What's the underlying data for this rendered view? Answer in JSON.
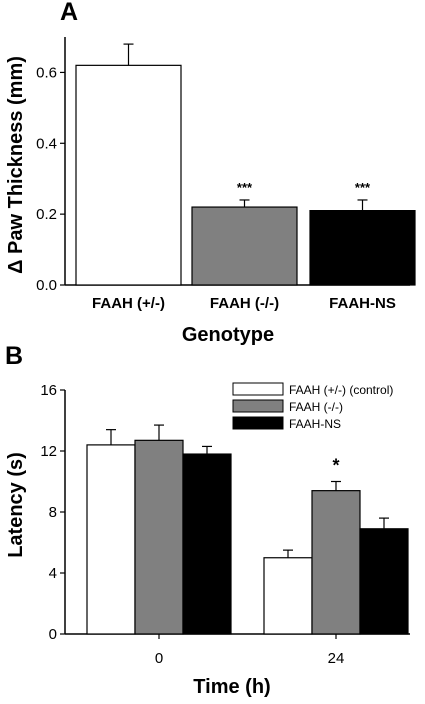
{
  "chart_data": [
    {
      "type": "bar",
      "panel_label": "A",
      "categories": [
        "FAAH (+/-)",
        "FAAH (-/-)",
        "FAAH-NS"
      ],
      "values": [
        0.62,
        0.22,
        0.21
      ],
      "errors": [
        0.06,
        0.02,
        0.03
      ],
      "colors": [
        "#ffffff",
        "#808080",
        "#000000"
      ],
      "significance": [
        "",
        "***",
        "***"
      ],
      "xlabel": "Genotype",
      "ylabel": "Δ Paw Thickness (mm)",
      "ylim": [
        0,
        0.7
      ],
      "yticks": [
        "0.0",
        "0.2",
        "0.4",
        "0.6"
      ],
      "grid": false
    },
    {
      "type": "bar",
      "panel_label": "B",
      "categories": [
        "0",
        "24"
      ],
      "series": [
        {
          "name": "FAAH (+/-) (control)",
          "color": "#ffffff",
          "values": [
            12.4,
            5.0
          ],
          "errors": [
            1.0,
            0.5
          ]
        },
        {
          "name": "FAAH (-/-)",
          "color": "#808080",
          "values": [
            12.7,
            9.4
          ],
          "errors": [
            1.0,
            0.6
          ]
        },
        {
          "name": "FAAH-NS",
          "color": "#000000",
          "values": [
            11.8,
            6.9
          ],
          "errors": [
            0.5,
            0.7
          ]
        }
      ],
      "significance": {
        "category": "24",
        "series": "FAAH (-/-)",
        "mark": "*"
      },
      "xlabel": "Time (h)",
      "ylabel": "Latency (s)",
      "ylim": [
        0,
        16
      ],
      "yticks": [
        "0",
        "4",
        "8",
        "12",
        "16"
      ],
      "legend_position": "top-right",
      "grid": false
    }
  ]
}
